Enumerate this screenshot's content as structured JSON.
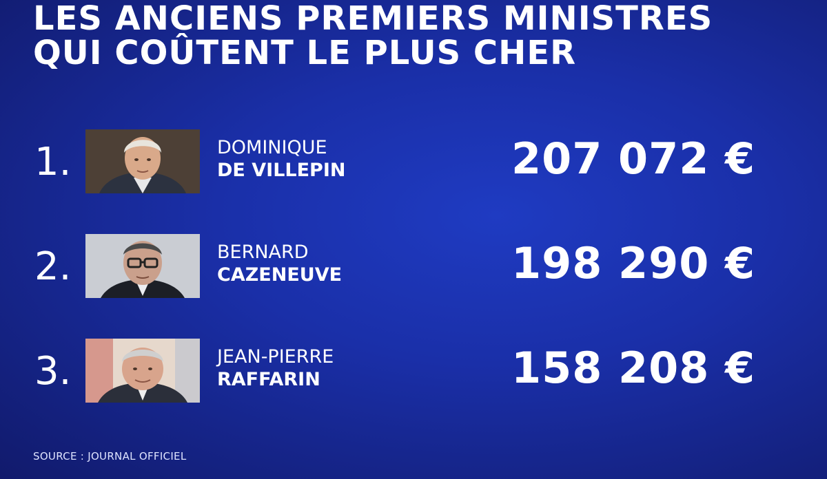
{
  "header": {
    "title_line1": "LES ANCIENS PREMIERS MINISTRES",
    "title_line2": "QUI COÛTENT LE PLUS CHER"
  },
  "ranking": [
    {
      "rank": "1.",
      "first_name": "DOMINIQUE",
      "last_name": "DE VILLEPIN",
      "amount": "207 072 €"
    },
    {
      "rank": "2.",
      "first_name": "BERNARD",
      "last_name": "CAZENEUVE",
      "amount": "198 290 €"
    },
    {
      "rank": "3.",
      "first_name": "JEAN-PIERRE",
      "last_name": "RAFFARIN",
      "amount": "158 208 €"
    }
  ],
  "footer": {
    "source": "SOURCE : JOURNAL OFFICIEL"
  },
  "colors": {
    "background": "#1a2fa8",
    "text": "#ffffff"
  }
}
